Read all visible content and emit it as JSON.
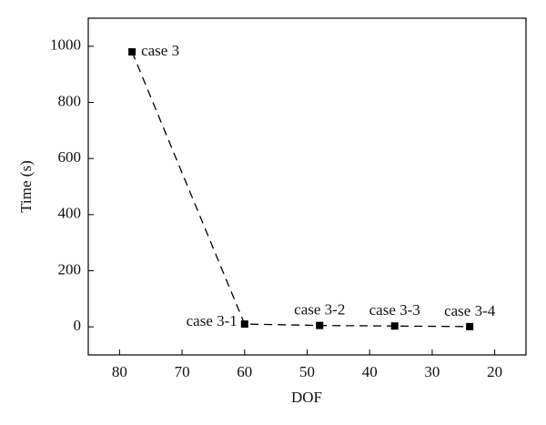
{
  "chart_data": {
    "type": "line",
    "x_label": "DOF",
    "y_label": "Time (s)",
    "x": [
      78,
      60,
      48,
      36,
      24
    ],
    "series": [
      {
        "color": "#000000",
        "values": [
          980,
          10,
          5,
          3,
          1
        ],
        "point_labels": [
          "case 3",
          "case 3-1",
          "case 3-2",
          "case 3-3",
          "case 3-4"
        ]
      }
    ],
    "xlim": [
      85,
      15
    ],
    "xticks": [
      80,
      70,
      60,
      50,
      40,
      30,
      20
    ],
    "ylim": [
      -100,
      1100
    ],
    "yticks": [
      0,
      200,
      400,
      600,
      800,
      1000
    ],
    "grid": false
  }
}
